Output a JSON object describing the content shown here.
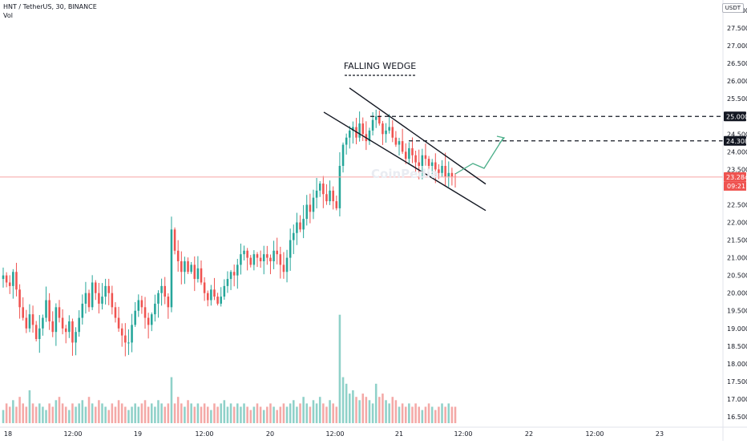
{
  "header": {
    "symbol_line": "HNT / TetherUS, 30, BINANCE",
    "volume_label": "Vol"
  },
  "price_axis": {
    "unit": "USDT",
    "ticks": [
      "28.000",
      "27.500",
      "27.000",
      "26.500",
      "26.000",
      "25.500",
      "24.500",
      "24.000",
      "23.500",
      "22.500",
      "22.000",
      "21.500",
      "21.000",
      "20.500",
      "20.000",
      "19.500",
      "19.000",
      "18.500",
      "18.000",
      "17.500",
      "17.000",
      "16.500"
    ],
    "tick_values": [
      28.0,
      27.5,
      27.0,
      26.5,
      26.0,
      25.5,
      24.5,
      24.0,
      23.5,
      22.5,
      22.0,
      21.5,
      21.0,
      20.5,
      20.0,
      19.5,
      19.0,
      18.5,
      18.0,
      17.5,
      17.0,
      16.5
    ]
  },
  "time_axis": {
    "labels": [
      "18",
      "12:00",
      "19",
      "12:00",
      "20",
      "12:00",
      "21",
      "12:00",
      "22",
      "12:00",
      "23"
    ]
  },
  "annotations": {
    "title": "FALLING WEDGE",
    "level_1": "25.000",
    "level_2": "24.308",
    "current_price": "23.284",
    "countdown": "09:21"
  },
  "colors": {
    "up": "#26a69a",
    "down": "#ef5350",
    "current_line": "#f6a5a5",
    "projection": "#4caf8a",
    "dashed_level": "#131722"
  },
  "chart_data": {
    "type": "candlestick",
    "title": "FALLING WEDGE",
    "series_name": "HNT / TetherUS",
    "interval": "30",
    "ylim": [
      16.3,
      28.1
    ],
    "horizontal_levels": [
      25.0,
      24.308
    ],
    "current_price": 23.284,
    "closes": [
      20.5,
      20.3,
      20.2,
      20.6,
      20.1,
      19.6,
      19.3,
      19.0,
      19.4,
      19.1,
      18.7,
      19.0,
      19.3,
      19.8,
      19.2,
      18.9,
      19.6,
      19.3,
      19.0,
      18.9,
      19.2,
      18.6,
      18.9,
      19.3,
      19.7,
      20.0,
      19.6,
      20.3,
      20.0,
      19.7,
      19.9,
      20.2,
      20.0,
      19.6,
      19.3,
      19.0,
      18.8,
      18.6,
      18.6,
      19.1,
      19.5,
      19.8,
      19.6,
      19.3,
      19.1,
      19.4,
      19.7,
      20.0,
      20.2,
      19.9,
      19.6,
      21.8,
      21.2,
      20.9,
      20.6,
      20.9,
      20.6,
      20.8,
      20.4,
      20.7,
      20.3,
      20.0,
      19.8,
      20.1,
      19.9,
      19.7,
      19.9,
      20.2,
      20.4,
      20.6,
      20.5,
      20.8,
      21.1,
      21.2,
      21.0,
      20.8,
      21.1,
      21.0,
      20.9,
      21.1,
      21.0,
      20.9,
      21.2,
      21.1,
      20.8,
      20.6,
      21.0,
      21.5,
      21.7,
      22.0,
      21.8,
      22.1,
      22.5,
      22.3,
      22.7,
      22.9,
      23.1,
      22.8,
      22.6,
      22.9,
      22.6,
      22.4,
      23.6,
      24.2,
      24.4,
      24.6,
      24.7,
      24.4,
      24.8,
      24.5,
      24.3,
      24.6,
      24.9,
      25.0,
      24.8,
      24.5,
      24.6,
      24.7,
      24.4,
      24.2,
      24.3,
      24.0,
      23.8,
      24.1,
      23.9,
      23.7,
      23.6,
      23.9,
      23.8,
      23.6,
      23.7,
      23.5,
      23.4,
      23.6,
      23.3,
      23.4,
      23.3,
      23.284
    ],
    "volumes": [
      4,
      6,
      5,
      7,
      5,
      8,
      6,
      5,
      10,
      6,
      5,
      6,
      5,
      4,
      6,
      5,
      7,
      8,
      6,
      5,
      4,
      6,
      5,
      6,
      7,
      5,
      8,
      6,
      5,
      7,
      6,
      5,
      4,
      6,
      5,
      7,
      6,
      5,
      4,
      5,
      6,
      5,
      6,
      7,
      5,
      6,
      5,
      7,
      6,
      5,
      6,
      14,
      6,
      8,
      6,
      5,
      7,
      6,
      5,
      6,
      5,
      6,
      5,
      4,
      6,
      5,
      6,
      7,
      5,
      6,
      5,
      6,
      5,
      6,
      5,
      4,
      5,
      6,
      5,
      4,
      5,
      6,
      5,
      4,
      5,
      6,
      5,
      6,
      7,
      5,
      6,
      8,
      6,
      5,
      7,
      6,
      8,
      6,
      5,
      7,
      6,
      5,
      33,
      14,
      12,
      9,
      10,
      8,
      7,
      9,
      8,
      7,
      6,
      12,
      8,
      9,
      7,
      6,
      8,
      7,
      5,
      6,
      5,
      6,
      5,
      6,
      5,
      4,
      5,
      6,
      5,
      4,
      5,
      6,
      5,
      6
    ],
    "projection_path": [
      [
        0,
        23.3
      ],
      [
        3,
        23.7
      ],
      [
        5,
        23.5
      ],
      [
        7,
        24.4
      ]
    ]
  },
  "wedge": {
    "upper_start": 25.35,
    "upper_end": 23.2,
    "lower_start": 24.35,
    "lower_end": 22.45
  }
}
